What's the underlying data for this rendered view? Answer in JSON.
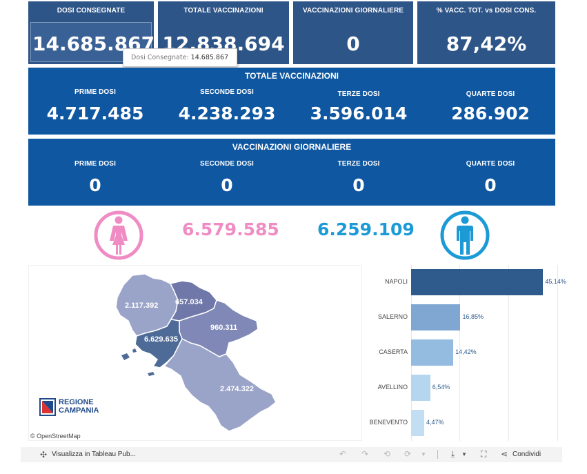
{
  "kpi": [
    {
      "label": "DOSI  CONSEGNATE",
      "value": "14.685.867"
    },
    {
      "label": "TOTALE VACCINAZIONI",
      "value": "12.838.694"
    },
    {
      "label": "VACCINAZIONI GIORNALIERE",
      "value": "0"
    },
    {
      "label": "% VACC. TOT. vs DOSI CONS.",
      "value": "87,42%"
    }
  ],
  "tooltip": {
    "label": "Dosi Consegnate:",
    "value": "14.685.867"
  },
  "totale": {
    "title": "TOTALE VACCINAZIONI",
    "items": [
      {
        "label": "PRIME DOSI",
        "value": "4.717.485"
      },
      {
        "label": "SECONDE DOSI",
        "value": "4.238.293"
      },
      {
        "label": "TERZE DOSI",
        "value": "3.596.014"
      },
      {
        "label": "QUARTE DOSI",
        "value": "286.902"
      }
    ]
  },
  "giornaliere": {
    "title": "VACCINAZIONI GIORNALIERE",
    "items": [
      {
        "label": "PRIME DOSI",
        "value": "0"
      },
      {
        "label": "SECONDE DOSI",
        "value": "0"
      },
      {
        "label": "TERZE DOSI",
        "value": "0"
      },
      {
        "label": "QUARTE DOSI",
        "value": "0"
      }
    ]
  },
  "gender": {
    "female_value": "6.579.585",
    "male_value": "6.259.109",
    "female_color": "#ef8cc4",
    "male_color": "#1c9ad6",
    "female_icon": "female-person-icon",
    "male_icon": "male-person-icon"
  },
  "map": {
    "labels": {
      "caserta": "2.117.392",
      "benevento": "657.034",
      "avellino": "960.311",
      "napoli": "6.629.635",
      "salerno": "2.474.322"
    },
    "logo_line1": "REGIONE",
    "logo_line2": "CAMPANIA",
    "attribution": "© OpenStreetMap"
  },
  "chart_data": {
    "type": "bar",
    "orientation": "horizontal",
    "categories": [
      "NAPOLI",
      "SALERNO",
      "CASERTA",
      "AVELLINO",
      "BENEVENTO"
    ],
    "values": [
      45.14,
      16.85,
      14.42,
      6.54,
      4.47
    ],
    "value_labels": [
      "45,14%",
      "16,85%",
      "14,42%",
      "6,54%",
      "4,47%"
    ],
    "colors": [
      "#2e5a8c",
      "#7fa7d2",
      "#93bce0",
      "#b5d6ef",
      "#c2def3"
    ],
    "xlim": [
      0,
      50
    ],
    "grid": true
  },
  "toolbar": {
    "view_label": "Visualizza in Tableau Pub...",
    "share_label": "Condividi"
  }
}
